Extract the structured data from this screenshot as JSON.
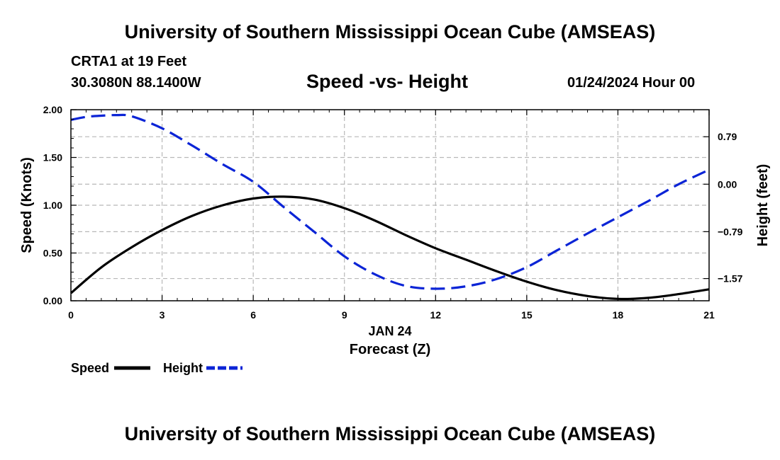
{
  "header": {
    "main_title": "University of Southern Mississippi Ocean Cube (AMSEAS)",
    "station": "CRTA1 at 19 Feet",
    "coordinates": "30.3080N  88.1400W",
    "subtitle": "Speed -vs- Height",
    "datetime": "01/24/2024 Hour 00"
  },
  "footer": {
    "repeat_title": "University of Southern Mississippi Ocean Cube (AMSEAS)"
  },
  "chart_data": {
    "type": "line",
    "title": "Speed -vs- Height",
    "xlabel": "Forecast (Z)",
    "xlabel_date": "JAN 24",
    "ylabel": "Speed (Knots)",
    "y2label": "Height (feet)",
    "xlim": [
      0,
      21
    ],
    "ylim": [
      0,
      2.0
    ],
    "y2lim": [
      -1.94,
      1.24
    ],
    "x_ticks": [
      0,
      3,
      6,
      9,
      12,
      15,
      18,
      21
    ],
    "x_tick_labels": [
      "0",
      "3",
      "6",
      "9",
      "12",
      "15",
      "18",
      "21"
    ],
    "y_ticks": [
      0.0,
      0.5,
      1.0,
      1.5,
      2.0
    ],
    "y_tick_labels": [
      "0.00",
      "0.50",
      "1.00",
      "1.50",
      "2.00"
    ],
    "y2_ticks": [
      0.79,
      0.0,
      -0.79,
      -1.57
    ],
    "y2_tick_labels": [
      "0.79",
      "0.00",
      "−0.79",
      "−1.57"
    ],
    "grid": true,
    "legend_position": "bottom-left",
    "series": [
      {
        "name": "Speed",
        "axis": "left",
        "color": "#000000",
        "style": "solid",
        "x": [
          0,
          1,
          2,
          3,
          4,
          5,
          6,
          7,
          8,
          9,
          10,
          11,
          12,
          13,
          14,
          15,
          16,
          17,
          18,
          19,
          20,
          21
        ],
        "values": [
          0.08,
          0.35,
          0.56,
          0.74,
          0.89,
          1.0,
          1.07,
          1.09,
          1.06,
          0.97,
          0.84,
          0.69,
          0.55,
          0.43,
          0.31,
          0.2,
          0.11,
          0.05,
          0.02,
          0.03,
          0.07,
          0.12
        ]
      },
      {
        "name": "Height",
        "axis": "right",
        "color": "#0b24d6",
        "style": "dashed",
        "x": [
          0,
          0.5,
          1,
          1.5,
          2,
          3,
          4,
          5,
          6,
          7,
          8,
          9,
          10,
          11,
          12,
          13,
          14,
          15,
          16,
          17,
          18,
          19,
          20,
          21
        ],
        "values": [
          1.07,
          1.12,
          1.14,
          1.15,
          1.13,
          0.93,
          0.64,
          0.33,
          0.04,
          -0.38,
          -0.79,
          -1.2,
          -1.5,
          -1.69,
          -1.74,
          -1.7,
          -1.58,
          -1.38,
          -1.1,
          -0.82,
          -0.55,
          -0.28,
          0.0,
          0.24
        ]
      }
    ]
  }
}
